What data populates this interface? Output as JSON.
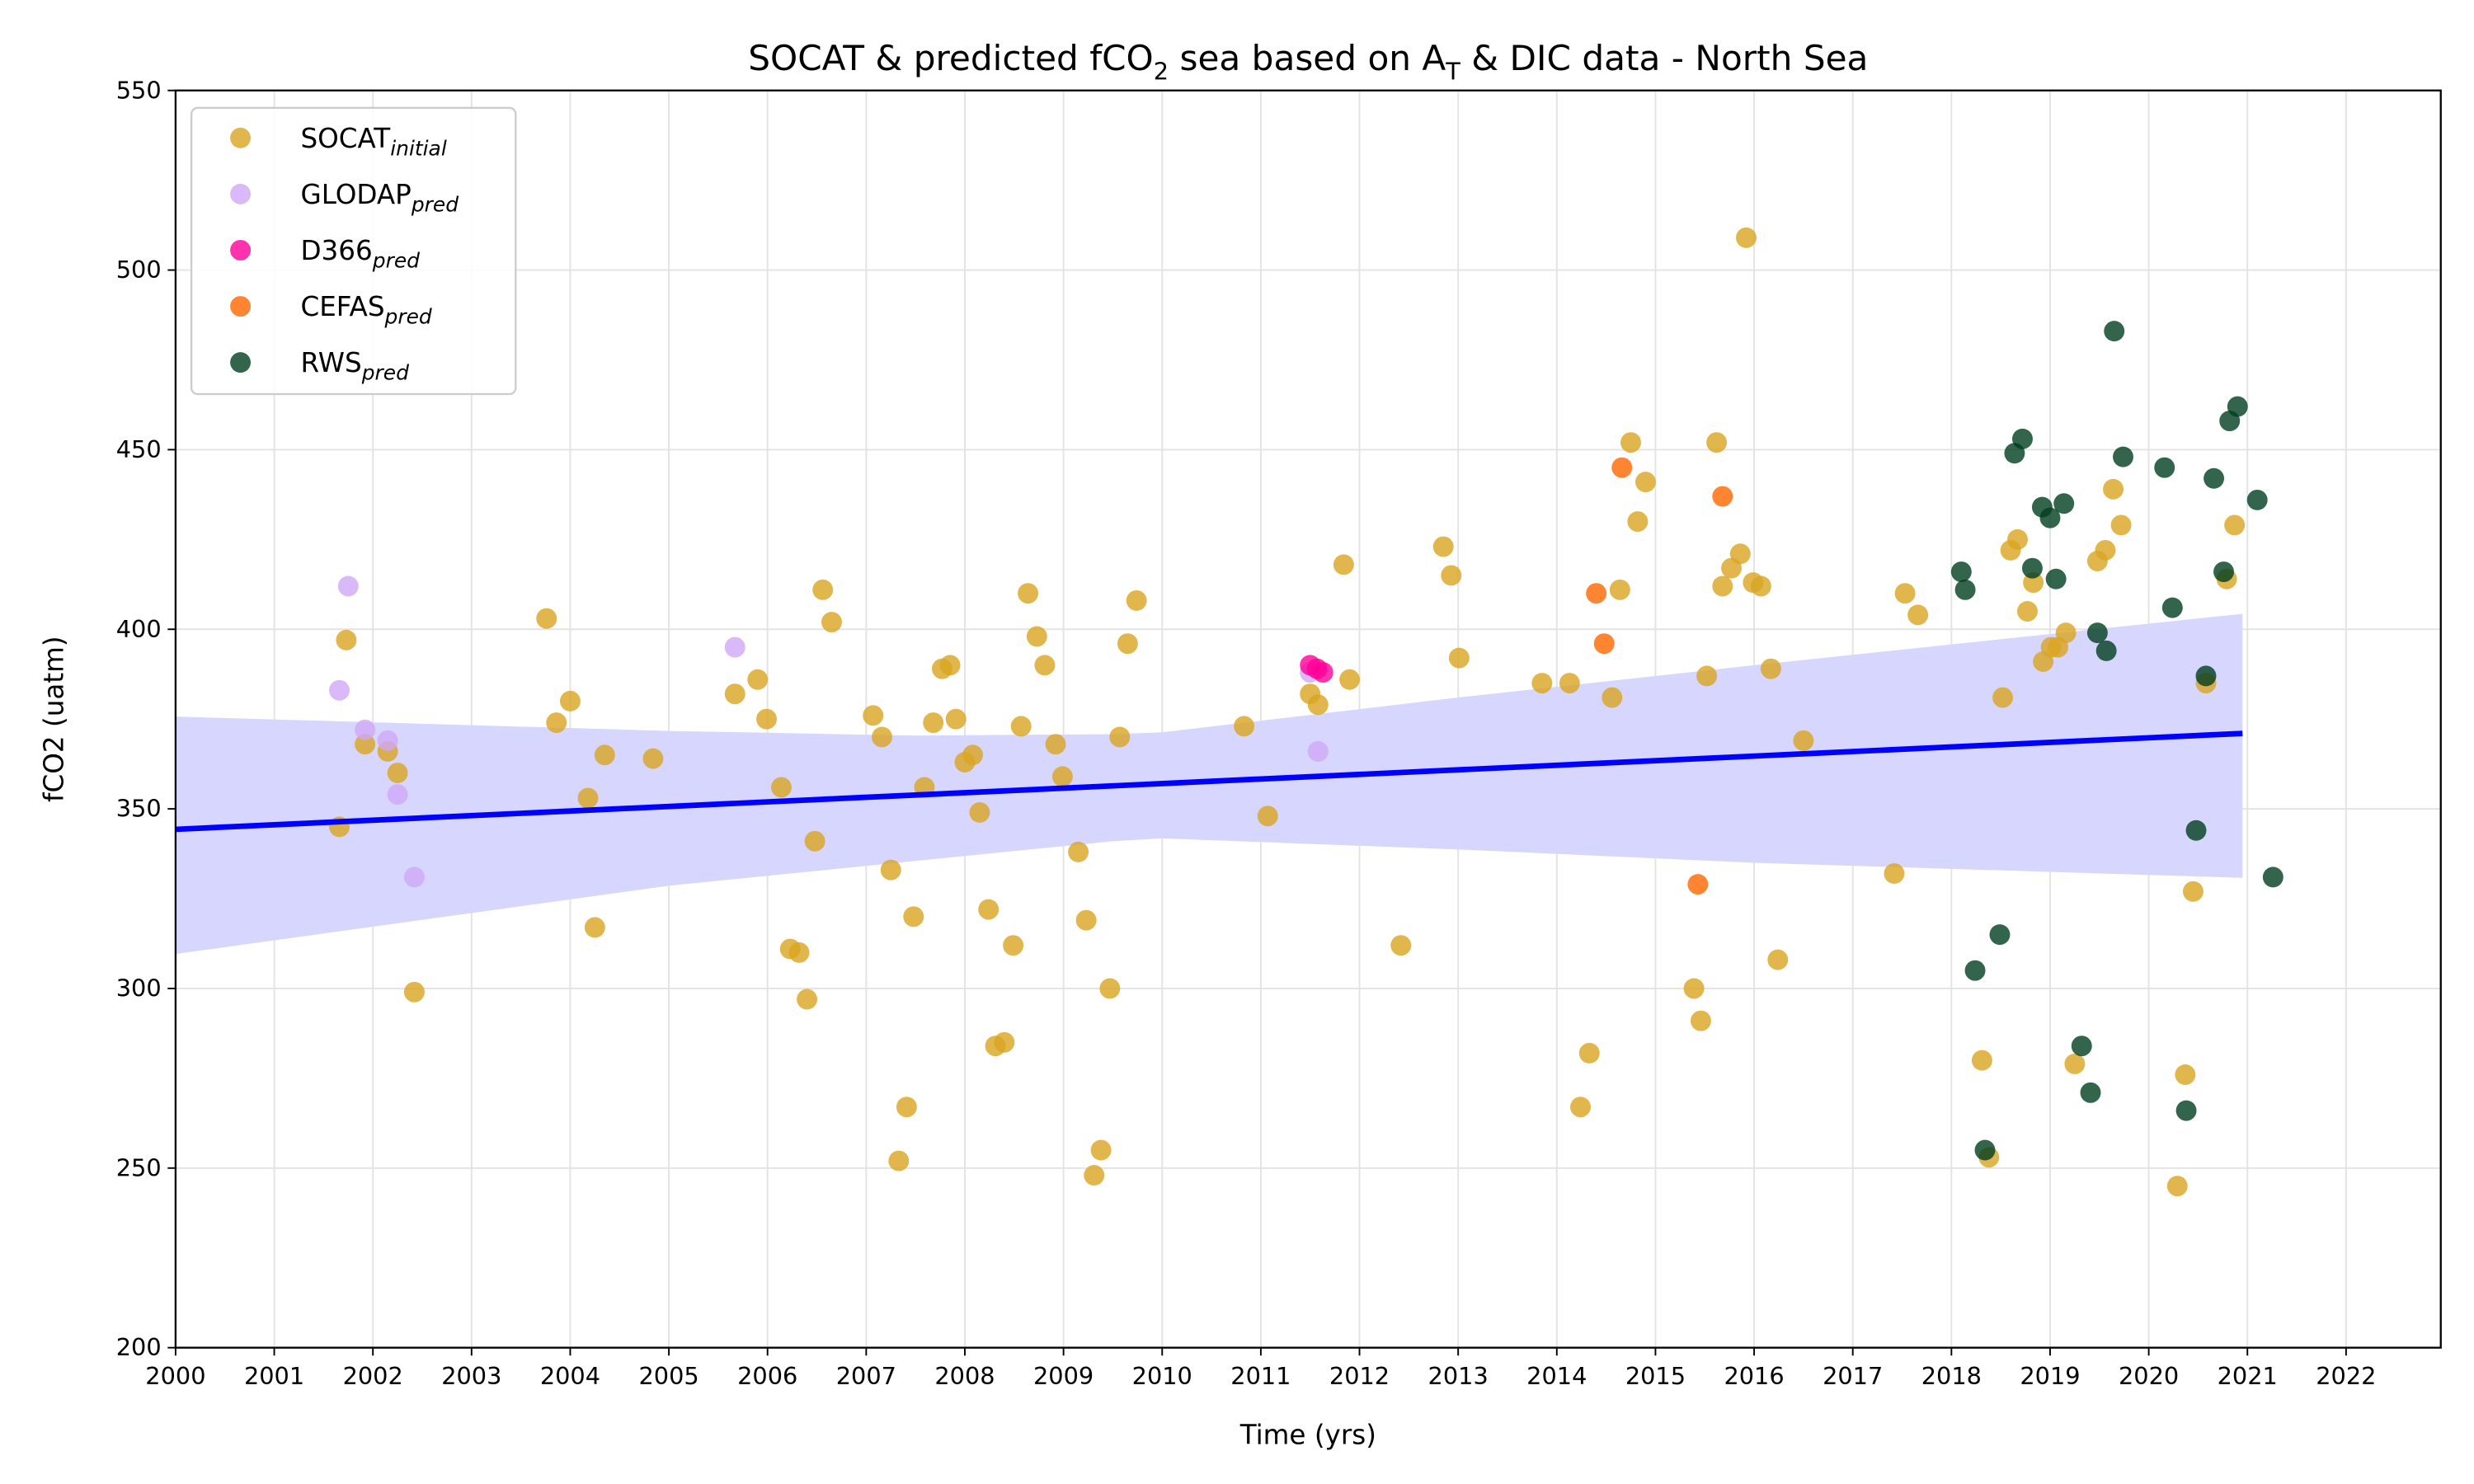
{
  "chart_data": {
    "type": "scatter",
    "title": [
      "SOCAT & predicted fCO",
      "2",
      " sea based on A",
      "T",
      " & DIC data - North Sea"
    ],
    "xlabel": "Time (yrs)",
    "ylabel": "fCO2 (uatm)",
    "xlim": [
      2000,
      2022.96
    ],
    "ylim": [
      200,
      550
    ],
    "xticks": [
      2000,
      2001,
      2002,
      2003,
      2004,
      2005,
      2006,
      2007,
      2008,
      2009,
      2010,
      2011,
      2012,
      2013,
      2014,
      2015,
      2016,
      2017,
      2018,
      2019,
      2020,
      2021,
      2022
    ],
    "yticks": [
      200,
      250,
      300,
      350,
      400,
      450,
      500,
      550
    ],
    "grid": true,
    "legend": "upper left",
    "alpha": 0.8,
    "series": [
      {
        "name": "SOCAT",
        "subscript": "initial",
        "color": "#daa520",
        "x": [
          2001.73,
          2001.66,
          2001.92,
          2002.15,
          2002.25,
          2002.42,
          2003.76,
          2003.86,
          2004.0,
          2004.18,
          2004.25,
          2004.35,
          2004.84,
          2005.67,
          2005.9,
          2005.99,
          2006.14,
          2006.23,
          2006.32,
          2006.4,
          2006.48,
          2006.56,
          2006.65,
          2007.07,
          2007.16,
          2007.25,
          2007.33,
          2007.41,
          2007.48,
          2007.59,
          2007.68,
          2007.77,
          2007.85,
          2007.91,
          2008.0,
          2008.08,
          2008.15,
          2008.24,
          2008.31,
          2008.4,
          2008.49,
          2008.57,
          2008.64,
          2008.73,
          2008.81,
          2008.92,
          2008.99,
          2009.15,
          2009.23,
          2009.31,
          2009.38,
          2009.47,
          2009.57,
          2009.65,
          2009.74,
          2010.83,
          2011.07,
          2011.5,
          2011.58,
          2011.84,
          2011.9,
          2012.42,
          2012.85,
          2012.93,
          2013.01,
          2013.85,
          2014.13,
          2014.24,
          2014.33,
          2014.56,
          2014.64,
          2014.75,
          2014.82,
          2014.9,
          2015.39,
          2015.46,
          2015.52,
          2015.62,
          2015.68,
          2015.77,
          2015.86,
          2015.92,
          2015.99,
          2016.07,
          2016.17,
          2016.24,
          2016.5,
          2017.42,
          2017.53,
          2017.66,
          2018.31,
          2018.38,
          2018.52,
          2018.6,
          2018.67,
          2018.77,
          2018.83,
          2018.93,
          2019.01,
          2019.08,
          2019.16,
          2019.25,
          2019.48,
          2019.56,
          2019.64,
          2019.72,
          2020.29,
          2020.37,
          2020.45,
          2020.58,
          2020.79,
          2020.87
        ],
        "values": [
          397,
          345,
          368,
          366,
          360,
          299,
          403,
          374,
          380,
          353,
          317,
          365,
          364,
          382,
          386,
          375,
          356,
          311,
          310,
          297,
          341,
          411,
          402,
          376,
          370,
          333,
          252,
          267,
          320,
          356,
          374,
          389,
          390,
          375,
          363,
          365,
          349,
          322,
          284,
          285,
          312,
          373,
          410,
          398,
          390,
          368,
          359,
          338,
          319,
          248,
          255,
          300,
          370,
          396,
          408,
          373,
          348,
          382,
          379,
          418,
          386,
          312,
          423,
          415,
          392,
          385,
          385,
          267,
          282,
          381,
          411,
          452,
          430,
          441,
          300,
          291,
          387,
          452,
          412,
          417,
          421,
          509,
          413,
          412,
          389,
          308,
          369,
          332,
          410,
          404,
          280,
          253,
          381,
          422,
          425,
          405,
          413,
          391,
          395,
          395,
          399,
          279,
          419,
          422,
          439,
          429,
          245,
          276,
          327,
          385,
          414,
          429
        ]
      },
      {
        "name": "GLODAP",
        "subscript": "pred",
        "color": "#cfa8f5",
        "x": [
          2001.75,
          2001.66,
          2001.92,
          2002.15,
          2002.25,
          2002.42,
          2005.67,
          2011.5,
          2011.58
        ],
        "values": [
          412,
          383,
          372,
          369,
          354,
          331,
          395,
          388,
          366
        ]
      },
      {
        "name": "D366",
        "subscript": "pred",
        "color": "#ff0099",
        "x": [
          2011.5,
          2011.57,
          2011.63
        ],
        "values": [
          390,
          389,
          388
        ]
      },
      {
        "name": "CEFAS",
        "subscript": "pred",
        "color": "#ff6600",
        "x": [
          2014.4,
          2014.48,
          2014.66,
          2015.43,
          2015.68
        ],
        "values": [
          410,
          396,
          445,
          329,
          437
        ]
      },
      {
        "name": "RWS",
        "subscript": "pred",
        "color": "#003d1f",
        "x": [
          2018.1,
          2018.14,
          2018.24,
          2018.34,
          2018.49,
          2018.64,
          2018.72,
          2018.82,
          2018.92,
          2019.0,
          2019.06,
          2019.14,
          2019.32,
          2019.41,
          2019.48,
          2019.57,
          2019.65,
          2019.74,
          2020.16,
          2020.24,
          2020.38,
          2020.48,
          2020.58,
          2020.66,
          2020.76,
          2020.82,
          2020.9,
          2021.1,
          2021.26
        ],
        "values": [
          416,
          411,
          305,
          255,
          315,
          449,
          453,
          417,
          434,
          431,
          414,
          435,
          284,
          271,
          399,
          394,
          483,
          448,
          445,
          406,
          266,
          344,
          387,
          442,
          416,
          458,
          462,
          436,
          331
        ]
      }
    ],
    "fit": {
      "color": "#0000ff",
      "x": [
        2000,
        2020.95
      ],
      "values": [
        344.3,
        371
      ]
    },
    "band": {
      "color": "#d6d6ff",
      "x": [
        2000,
        2005,
        2007.5,
        2009.5,
        2010,
        2013,
        2016,
        2020.95
      ],
      "upper": [
        375.7,
        371.7,
        370.4,
        370.8,
        371.3,
        381,
        390,
        404.3
      ],
      "lower": [
        309.6,
        328.6,
        335.5,
        341,
        341.8,
        338.7,
        335,
        330.8
      ]
    }
  }
}
